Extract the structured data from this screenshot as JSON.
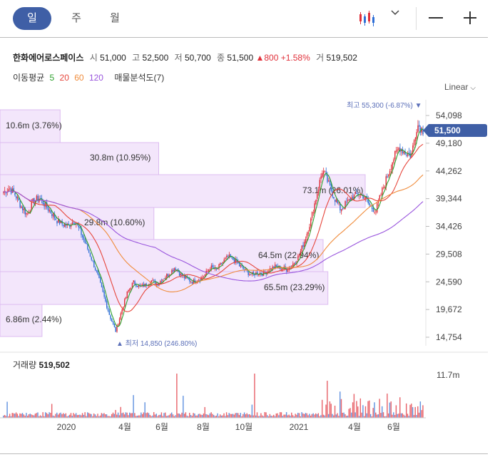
{
  "tabs": [
    {
      "label": "일",
      "active": true
    },
    {
      "label": "주",
      "active": false
    },
    {
      "label": "월",
      "active": false
    }
  ],
  "toolbar": {
    "chart_type_icon": "candlestick-icon",
    "dropdown_icon": "chevron-down-icon",
    "zoom_out_icon": "minus-icon",
    "zoom_in_icon": "plus-icon"
  },
  "stock": {
    "name": "한화에어로스페이스",
    "open_label": "시",
    "open": "51,000",
    "high_label": "고",
    "high": "52,500",
    "low_label": "저",
    "low": "50,700",
    "close_label": "종",
    "close": "51,500",
    "change": "▲800",
    "change_pct": "+1.58%",
    "volume_label": "거",
    "volume": "519,502"
  },
  "indicators": {
    "ma_label": "이동평균",
    "ma_periods": [
      "5",
      "20",
      "60",
      "120"
    ],
    "ma_colors": [
      "#2ca02c",
      "#e6463c",
      "#f08c3c",
      "#9955dd"
    ],
    "vp_label": "매물분석도(7)"
  },
  "scale": {
    "label": "Linear",
    "icon": "chevron-down-icon"
  },
  "price_axis": [
    "54,098",
    "49,180",
    "44,262",
    "39,344",
    "34,426",
    "29,508",
    "24,590",
    "19,672",
    "14,754"
  ],
  "current_price": "51,500",
  "high_marker": "최고 55,300 (-6.87%) ▼",
  "low_marker": "▲ 최저 14,850 (246.80%)",
  "volume_profile": [
    {
      "label": "10.6m (3.76%)",
      "pct": 3.76
    },
    {
      "label": "30.8m (10.95%)",
      "pct": 10.95
    },
    {
      "label": "73.1m (26.01%)",
      "pct": 26.01
    },
    {
      "label": "29.8m (10.60%)",
      "pct": 10.6
    },
    {
      "label": "64.5m (22.94%)",
      "pct": 22.94
    },
    {
      "label": "65.5m (23.29%)",
      "pct": 23.29
    },
    {
      "label": "6.86m (2.44%)",
      "pct": 2.44
    }
  ],
  "volume": {
    "label": "거래량",
    "value": "519,502",
    "axis_max": "11.7m"
  },
  "x_axis": [
    "2020",
    "4월",
    "6월",
    "8월",
    "10월",
    "2021",
    "4월",
    "6월"
  ],
  "colors": {
    "accent": "#3f5fa6",
    "up": "#e0303a",
    "down": "#2e6fd6",
    "vp_fill": "#f3e6fb",
    "vp_stroke": "#dcbcf0"
  },
  "chart_data": {
    "type": "candlestick",
    "price_range": [
      14754,
      55300
    ],
    "series": [
      {
        "name": "price_close_approx",
        "values": [
          40500,
          41200,
          40000,
          38000,
          36500,
          38800,
          39500,
          38300,
          37000,
          35500,
          34800,
          34500,
          35600,
          33500,
          31000,
          28500,
          25500,
          22000,
          18500,
          15800,
          19500,
          22800,
          24500,
          23700,
          24000,
          24800,
          24200,
          25200,
          26000,
          27200,
          25800,
          25100,
          24600,
          25000,
          25700,
          27200,
          26600,
          28000,
          29000,
          28500,
          27400,
          26500,
          25800,
          26200,
          26000,
          26800,
          27300,
          27000,
          26800,
          27800,
          29200,
          32000,
          35500,
          40000,
          44500,
          42000,
          39500,
          37500,
          38500,
          39500,
          40200,
          39800,
          38000,
          37200,
          40500,
          43500,
          46500,
          48500,
          47500,
          47000,
          52500,
          51500
        ]
      }
    ],
    "moving_averages": [
      "5",
      "20",
      "60",
      "120"
    ],
    "volume_profile_pct": [
      3.76,
      10.95,
      26.01,
      10.6,
      22.94,
      23.29,
      2.44
    ],
    "x_ticks": [
      "2020",
      "4월",
      "6월",
      "8월",
      "10월",
      "2021",
      "4월",
      "6월"
    ],
    "y_ticks": [
      54098,
      49180,
      44262,
      39344,
      34426,
      29508,
      24590,
      19672,
      14754
    ]
  }
}
